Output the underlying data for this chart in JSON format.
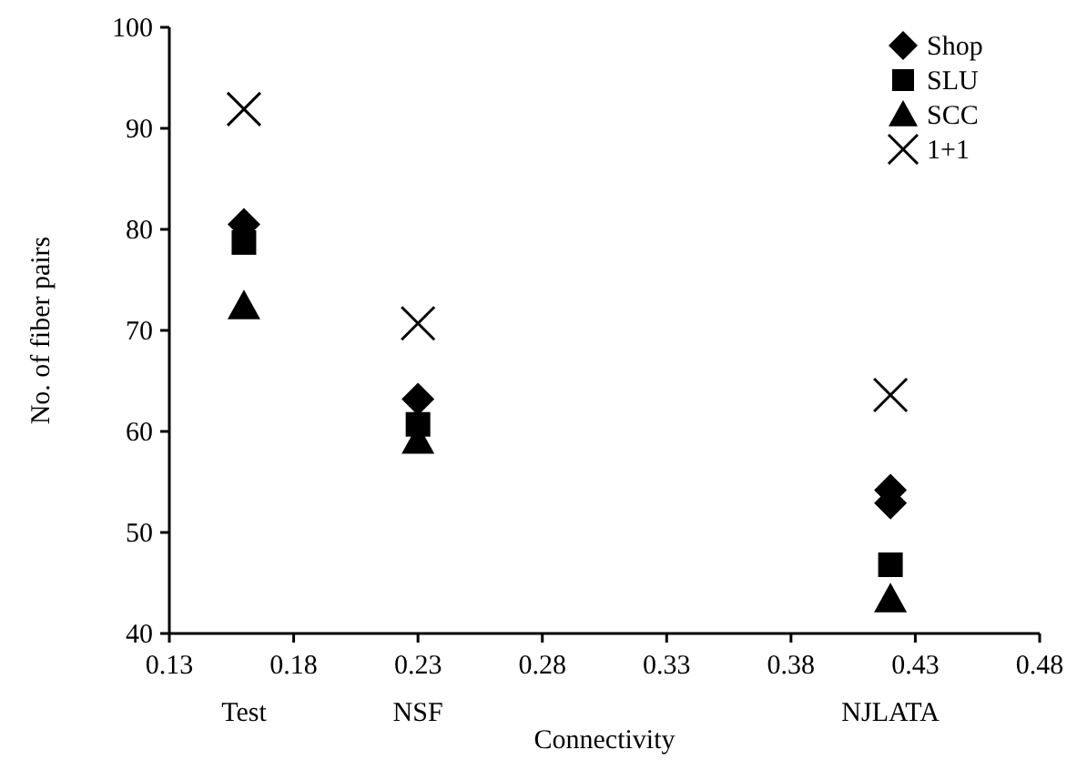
{
  "chart_data": {
    "type": "scatter",
    "xlabel": "Connectivity",
    "ylabel": "No. of fiber pairs",
    "xlim": [
      0.13,
      0.48
    ],
    "xticks": [
      0.13,
      0.18,
      0.23,
      0.28,
      0.33,
      0.38,
      0.43,
      0.48
    ],
    "ylim": [
      40,
      100
    ],
    "yticks": [
      40,
      50,
      60,
      70,
      80,
      90,
      100
    ],
    "grid": false,
    "legend": "top right",
    "series": [
      {
        "name": "Shop",
        "color": "#000000",
        "marker": "diamond",
        "x": [
          0.16,
          0.23,
          0.42,
          0.42
        ],
        "values": [
          80.5,
          63.2,
          54.2,
          52.9
        ]
      },
      {
        "name": "SLU",
        "color": "#000000",
        "marker": "square",
        "x": [
          0.16,
          0.23,
          0.42
        ],
        "values": [
          78.7,
          60.7,
          46.8
        ]
      },
      {
        "name": "SCC",
        "color": "#000000",
        "marker": "triangle",
        "x": [
          0.16,
          0.23,
          0.42
        ],
        "values": [
          72.4,
          59.1,
          43.4
        ]
      },
      {
        "name": "1+1",
        "color": "#000000",
        "marker": "cross",
        "x": [
          0.16,
          0.23,
          0.42
        ],
        "values": [
          91.9,
          70.7,
          63.6
        ]
      }
    ],
    "annotations": [
      "Test",
      "NSF",
      "NJLATA"
    ]
  }
}
